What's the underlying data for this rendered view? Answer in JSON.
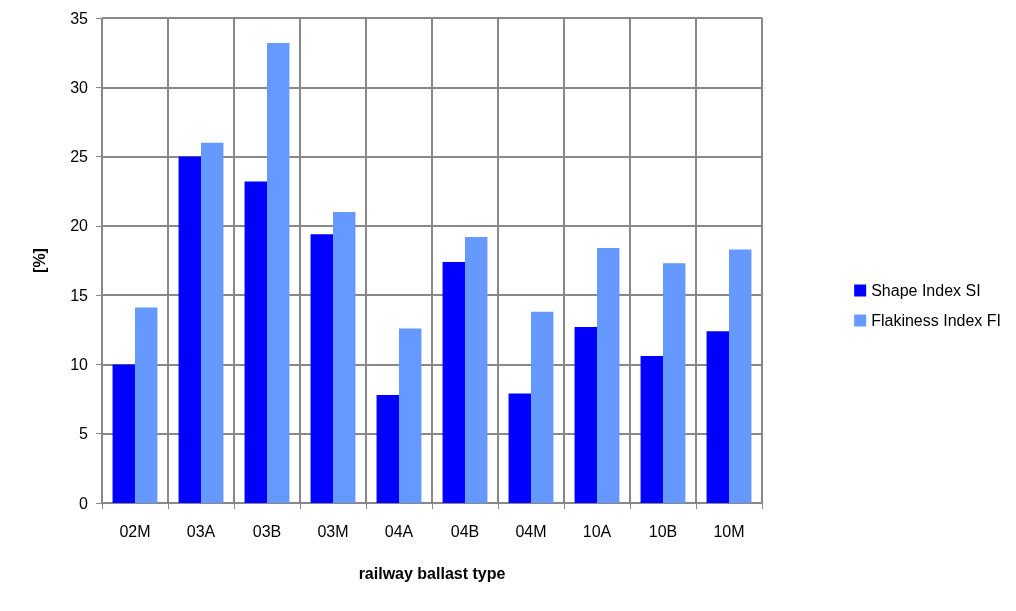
{
  "chart_data": {
    "type": "bar",
    "xlabel": "railway ballast type",
    "ylabel": "[%]",
    "categories": [
      "02M",
      "03A",
      "03B",
      "03M",
      "04A",
      "04B",
      "04M",
      "10A",
      "10B",
      "10M"
    ],
    "series": [
      {
        "name": "Shape Index SI",
        "color": "#0000ff",
        "values": [
          10.0,
          25.0,
          23.2,
          19.4,
          7.8,
          17.4,
          7.9,
          12.7,
          10.6,
          12.4
        ]
      },
      {
        "name": "Flakiness Index FI",
        "color": "#6699ff",
        "values": [
          14.1,
          26.0,
          33.2,
          21.0,
          12.6,
          19.2,
          13.8,
          18.4,
          17.3,
          18.3
        ]
      }
    ],
    "ylim": [
      0,
      35
    ],
    "yticks": [
      0,
      5,
      10,
      15,
      20,
      25,
      30,
      35
    ],
    "grid": true,
    "legend": "right"
  }
}
